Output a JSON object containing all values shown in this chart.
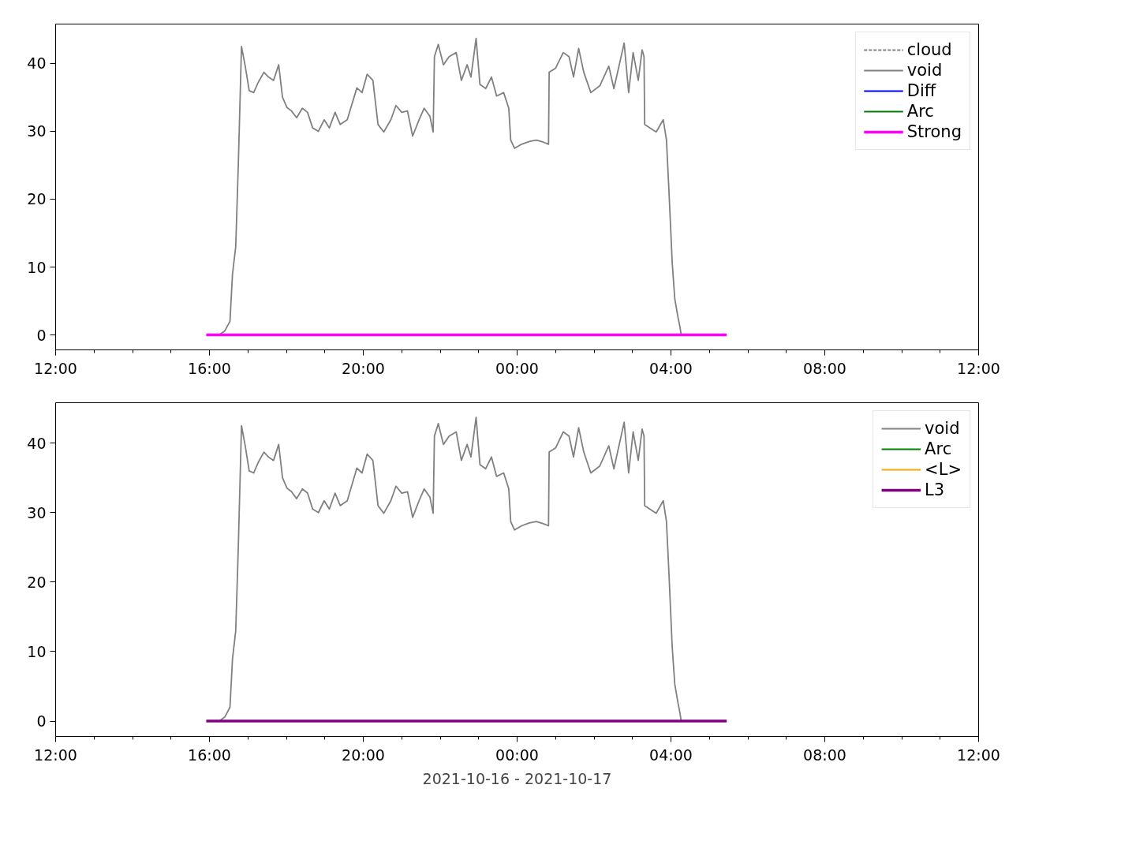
{
  "chart_data": [
    {
      "type": "line",
      "xlim": [
        "2021-10-16T12:00",
        "2021-10-17T12:00"
      ],
      "xticks": [
        {
          "value": "2021-10-16T12:00",
          "label": "12:00"
        },
        {
          "value": "2021-10-16T13:00",
          "label": null
        },
        {
          "value": "2021-10-16T14:00",
          "label": null
        },
        {
          "value": "2021-10-16T15:00",
          "label": null
        },
        {
          "value": "2021-10-16T16:00",
          "label": "16:00"
        },
        {
          "value": "2021-10-16T17:00",
          "label": null
        },
        {
          "value": "2021-10-16T18:00",
          "label": null
        },
        {
          "value": "2021-10-16T19:00",
          "label": null
        },
        {
          "value": "2021-10-16T20:00",
          "label": "20:00"
        },
        {
          "value": "2021-10-16T21:00",
          "label": null
        },
        {
          "value": "2021-10-16T22:00",
          "label": null
        },
        {
          "value": "2021-10-16T23:00",
          "label": null
        },
        {
          "value": "2021-10-17T00:00",
          "label": "00:00"
        },
        {
          "value": "2021-10-17T01:00",
          "label": null
        },
        {
          "value": "2021-10-17T02:00",
          "label": null
        },
        {
          "value": "2021-10-17T03:00",
          "label": null
        },
        {
          "value": "2021-10-17T04:00",
          "label": "04:00"
        },
        {
          "value": "2021-10-17T05:00",
          "label": null
        },
        {
          "value": "2021-10-17T06:00",
          "label": null
        },
        {
          "value": "2021-10-17T07:00",
          "label": null
        },
        {
          "value": "2021-10-17T08:00",
          "label": "08:00"
        },
        {
          "value": "2021-10-17T09:00",
          "label": null
        },
        {
          "value": "2021-10-17T10:00",
          "label": null
        },
        {
          "value": "2021-10-17T11:00",
          "label": null
        },
        {
          "value": "2021-10-17T12:00",
          "label": "12:00"
        }
      ],
      "ylim": [
        -2.2,
        45.8
      ],
      "yticks": [
        0,
        10,
        20,
        30,
        40
      ],
      "grid": false,
      "legend": "top right",
      "series": [
        {
          "name": "cloud",
          "color": "#808080",
          "line_style": "dashed"
        },
        {
          "name": "void",
          "color": "#808080",
          "x": [
            "2021-10-16T16:15",
            "2021-10-16T16:24",
            "2021-10-16T16:32",
            "2021-10-16T16:36",
            "2021-10-16T16:41",
            "2021-10-16T16:45",
            "2021-10-16T16:50",
            "2021-10-16T16:56",
            "2021-10-16T17:02",
            "2021-10-16T17:09",
            "2021-10-16T17:16",
            "2021-10-16T17:25",
            "2021-10-16T17:32",
            "2021-10-16T17:40",
            "2021-10-16T17:48",
            "2021-10-16T17:54",
            "2021-10-16T18:01",
            "2021-10-16T18:08",
            "2021-10-16T18:16",
            "2021-10-16T18:25",
            "2021-10-16T18:33",
            "2021-10-16T18:41",
            "2021-10-16T18:50",
            "2021-10-16T18:59",
            "2021-10-16T19:07",
            "2021-10-16T19:16",
            "2021-10-16T19:24",
            "2021-10-16T19:35",
            "2021-10-16T19:50",
            "2021-10-16T19:58",
            "2021-10-16T20:06",
            "2021-10-16T20:15",
            "2021-10-16T20:23",
            "2021-10-16T20:32",
            "2021-10-16T20:43",
            "2021-10-16T20:51",
            "2021-10-16T21:00",
            "2021-10-16T21:09",
            "2021-10-16T21:17",
            "2021-10-16T21:27",
            "2021-10-16T21:35",
            "2021-10-16T21:44",
            "2021-10-16T21:49",
            "2021-10-16T21:51",
            "2021-10-16T21:57",
            "2021-10-16T22:05",
            "2021-10-16T22:14",
            "2021-10-16T22:25",
            "2021-10-16T22:33",
            "2021-10-16T22:42",
            "2021-10-16T22:48",
            "2021-10-16T22:56",
            "2021-10-16T23:02",
            "2021-10-16T23:11",
            "2021-10-16T23:20",
            "2021-10-16T23:28",
            "2021-10-16T23:39",
            "2021-10-16T23:47",
            "2021-10-16T23:50",
            "2021-10-16T23:56",
            "2021-10-17T00:07",
            "2021-10-17T00:19",
            "2021-10-17T00:30",
            "2021-10-17T00:41",
            "2021-10-17T00:49",
            "2021-10-17T00:50",
            "2021-10-17T01:00",
            "2021-10-17T01:12",
            "2021-10-17T01:21",
            "2021-10-17T01:28",
            "2021-10-17T01:36",
            "2021-10-17T01:44",
            "2021-10-17T01:55",
            "2021-10-17T02:09",
            "2021-10-17T02:23",
            "2021-10-17T02:31",
            "2021-10-17T02:47",
            "2021-10-17T02:54",
            "2021-10-17T03:01",
            "2021-10-17T03:09",
            "2021-10-17T03:15",
            "2021-10-17T03:18",
            "2021-10-17T03:19",
            "2021-10-17T03:32",
            "2021-10-17T03:37",
            "2021-10-17T03:48",
            "2021-10-17T03:53",
            "2021-10-17T03:57",
            "2021-10-17T04:02",
            "2021-10-17T04:06",
            "2021-10-17T04:11",
            "2021-10-17T04:14",
            "2021-10-17T04:16"
          ],
          "values": [
            0,
            0.6,
            2,
            9,
            13,
            25,
            42.5,
            39.5,
            36,
            35.7,
            37.2,
            38.7,
            38,
            37.5,
            39.8,
            35,
            33.5,
            33,
            32,
            33.4,
            32.8,
            30.5,
            30,
            31.7,
            30.5,
            32.8,
            31,
            31.7,
            36.4,
            35.7,
            38.4,
            37.5,
            31,
            29.9,
            31.7,
            33.8,
            32.8,
            33,
            29.3,
            31.7,
            33.4,
            32.2,
            29.9,
            41,
            42.8,
            39.8,
            41,
            41.6,
            37.5,
            39.8,
            38,
            43.7,
            36.9,
            36.3,
            38,
            35.2,
            35.7,
            33.4,
            28.7,
            27.5,
            28.1,
            28.5,
            28.7,
            28.4,
            28.1,
            38.7,
            39.3,
            41.6,
            41,
            38,
            42.2,
            38.7,
            35.7,
            36.7,
            39.6,
            36.3,
            43,
            35.7,
            41.6,
            37.5,
            42,
            41,
            31,
            30.2,
            29.9,
            31.7,
            28.7,
            21,
            10.6,
            5.3,
            2.6,
            1.2,
            0
          ]
        },
        {
          "name": "Diff",
          "color": "#0000ff"
        },
        {
          "name": "Arc",
          "color": "#008000"
        },
        {
          "name": "Strong",
          "color": "#ff00ff",
          "x": [
            "2021-10-16T15:55",
            "2021-10-17T05:27"
          ],
          "values": [
            0,
            0
          ]
        }
      ]
    },
    {
      "type": "line",
      "xlabel": "2021-10-16 - 2021-10-17",
      "xlim": [
        "2021-10-16T12:00",
        "2021-10-17T12:00"
      ],
      "xticks": [
        {
          "value": "2021-10-16T12:00",
          "label": "12:00"
        },
        {
          "value": "2021-10-16T13:00",
          "label": null
        },
        {
          "value": "2021-10-16T14:00",
          "label": null
        },
        {
          "value": "2021-10-16T15:00",
          "label": null
        },
        {
          "value": "2021-10-16T16:00",
          "label": "16:00"
        },
        {
          "value": "2021-10-16T17:00",
          "label": null
        },
        {
          "value": "2021-10-16T18:00",
          "label": null
        },
        {
          "value": "2021-10-16T19:00",
          "label": null
        },
        {
          "value": "2021-10-16T20:00",
          "label": "20:00"
        },
        {
          "value": "2021-10-16T21:00",
          "label": null
        },
        {
          "value": "2021-10-16T22:00",
          "label": null
        },
        {
          "value": "2021-10-16T23:00",
          "label": null
        },
        {
          "value": "2021-10-17T00:00",
          "label": "00:00"
        },
        {
          "value": "2021-10-17T01:00",
          "label": null
        },
        {
          "value": "2021-10-17T02:00",
          "label": null
        },
        {
          "value": "2021-10-17T03:00",
          "label": null
        },
        {
          "value": "2021-10-17T04:00",
          "label": "04:00"
        },
        {
          "value": "2021-10-17T05:00",
          "label": null
        },
        {
          "value": "2021-10-17T06:00",
          "label": null
        },
        {
          "value": "2021-10-17T07:00",
          "label": null
        },
        {
          "value": "2021-10-17T08:00",
          "label": "08:00"
        },
        {
          "value": "2021-10-17T09:00",
          "label": null
        },
        {
          "value": "2021-10-17T10:00",
          "label": null
        },
        {
          "value": "2021-10-17T11:00",
          "label": null
        },
        {
          "value": "2021-10-17T12:00",
          "label": "12:00"
        }
      ],
      "ylim": [
        -2.2,
        45.8
      ],
      "yticks": [
        0,
        10,
        20,
        30,
        40
      ],
      "grid": false,
      "legend": "top right",
      "series": [
        {
          "name": "void",
          "color": "#808080",
          "x": [
            "2021-10-16T16:15",
            "2021-10-16T16:24",
            "2021-10-16T16:32",
            "2021-10-16T16:36",
            "2021-10-16T16:41",
            "2021-10-16T16:45",
            "2021-10-16T16:50",
            "2021-10-16T16:56",
            "2021-10-16T17:02",
            "2021-10-16T17:09",
            "2021-10-16T17:16",
            "2021-10-16T17:25",
            "2021-10-16T17:32",
            "2021-10-16T17:40",
            "2021-10-16T17:48",
            "2021-10-16T17:54",
            "2021-10-16T18:01",
            "2021-10-16T18:08",
            "2021-10-16T18:16",
            "2021-10-16T18:25",
            "2021-10-16T18:33",
            "2021-10-16T18:41",
            "2021-10-16T18:50",
            "2021-10-16T18:59",
            "2021-10-16T19:07",
            "2021-10-16T19:16",
            "2021-10-16T19:24",
            "2021-10-16T19:35",
            "2021-10-16T19:50",
            "2021-10-16T19:58",
            "2021-10-16T20:06",
            "2021-10-16T20:15",
            "2021-10-16T20:23",
            "2021-10-16T20:32",
            "2021-10-16T20:43",
            "2021-10-16T20:51",
            "2021-10-16T21:00",
            "2021-10-16T21:09",
            "2021-10-16T21:17",
            "2021-10-16T21:27",
            "2021-10-16T21:35",
            "2021-10-16T21:44",
            "2021-10-16T21:49",
            "2021-10-16T21:51",
            "2021-10-16T21:57",
            "2021-10-16T22:05",
            "2021-10-16T22:14",
            "2021-10-16T22:25",
            "2021-10-16T22:33",
            "2021-10-16T22:42",
            "2021-10-16T22:48",
            "2021-10-16T22:56",
            "2021-10-16T23:02",
            "2021-10-16T23:11",
            "2021-10-16T23:20",
            "2021-10-16T23:28",
            "2021-10-16T23:39",
            "2021-10-16T23:47",
            "2021-10-16T23:50",
            "2021-10-16T23:56",
            "2021-10-17T00:07",
            "2021-10-17T00:19",
            "2021-10-17T00:30",
            "2021-10-17T00:41",
            "2021-10-17T00:49",
            "2021-10-17T00:50",
            "2021-10-17T01:00",
            "2021-10-17T01:12",
            "2021-10-17T01:21",
            "2021-10-17T01:28",
            "2021-10-17T01:36",
            "2021-10-17T01:44",
            "2021-10-17T01:55",
            "2021-10-17T02:09",
            "2021-10-17T02:23",
            "2021-10-17T02:31",
            "2021-10-17T02:47",
            "2021-10-17T02:54",
            "2021-10-17T03:01",
            "2021-10-17T03:09",
            "2021-10-17T03:15",
            "2021-10-17T03:18",
            "2021-10-17T03:19",
            "2021-10-17T03:32",
            "2021-10-17T03:37",
            "2021-10-17T03:48",
            "2021-10-17T03:53",
            "2021-10-17T03:57",
            "2021-10-17T04:02",
            "2021-10-17T04:06",
            "2021-10-17T04:11",
            "2021-10-17T04:14",
            "2021-10-17T04:16"
          ],
          "values": [
            0,
            0.6,
            2,
            9,
            13,
            25,
            42.5,
            39.5,
            36,
            35.7,
            37.2,
            38.7,
            38,
            37.5,
            39.8,
            35,
            33.5,
            33,
            32,
            33.4,
            32.8,
            30.5,
            30,
            31.7,
            30.5,
            32.8,
            31,
            31.7,
            36.4,
            35.7,
            38.4,
            37.5,
            31,
            29.9,
            31.7,
            33.8,
            32.8,
            33,
            29.3,
            31.7,
            33.4,
            32.2,
            29.9,
            41,
            42.8,
            39.8,
            41,
            41.6,
            37.5,
            39.8,
            38,
            43.7,
            36.9,
            36.3,
            38,
            35.2,
            35.7,
            33.4,
            28.7,
            27.5,
            28.1,
            28.5,
            28.7,
            28.4,
            28.1,
            38.7,
            39.3,
            41.6,
            41,
            38,
            42.2,
            38.7,
            35.7,
            36.7,
            39.6,
            36.3,
            43,
            35.7,
            41.6,
            37.5,
            42,
            41,
            31,
            30.2,
            29.9,
            31.7,
            28.7,
            21,
            10.6,
            5.3,
            2.6,
            1.2,
            0
          ]
        },
        {
          "name": "Arc",
          "color": "#008000"
        },
        {
          "name": "<L>",
          "color": "#ffa500"
        },
        {
          "name": "L3",
          "color": "#800080",
          "x": [
            "2021-10-16T15:55",
            "2021-10-17T05:27"
          ],
          "values": [
            0,
            0
          ]
        }
      ]
    }
  ]
}
